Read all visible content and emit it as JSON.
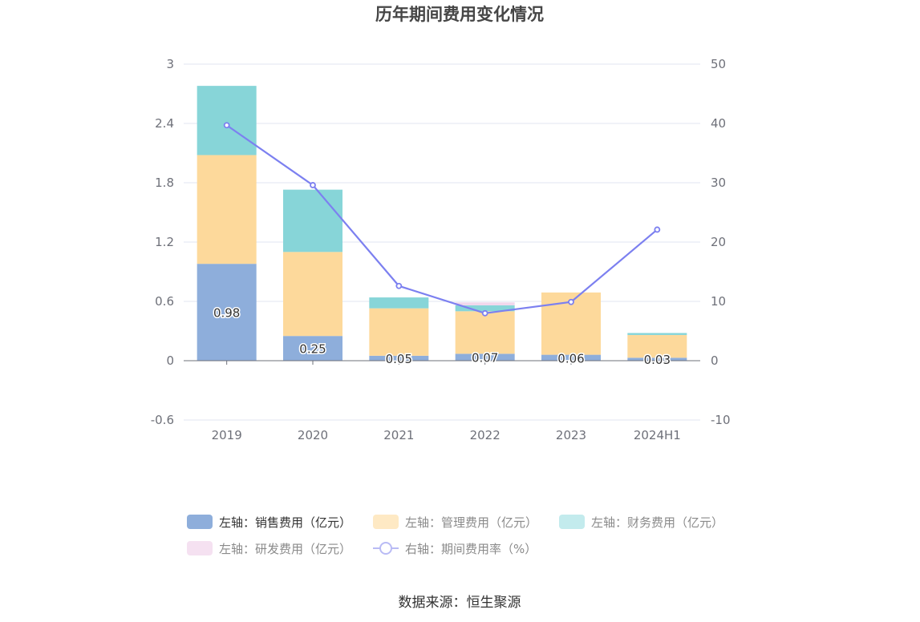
{
  "chart_data": {
    "type": "bar",
    "title": "历年期间费用变化情况",
    "categories": [
      "2019",
      "2020",
      "2021",
      "2022",
      "2023",
      "2024H1"
    ],
    "left_axis": {
      "ticks": [
        "3",
        "2.4",
        "1.8",
        "1.2",
        "0.6",
        "0",
        "-0.6"
      ],
      "ylim": [
        -0.6,
        3
      ]
    },
    "right_axis": {
      "ticks": [
        "50",
        "40",
        "30",
        "20",
        "10",
        "0",
        "-10"
      ],
      "ylim": [
        -10,
        50
      ]
    },
    "series": [
      {
        "name": "左轴：销售费用（亿元）",
        "type": "bar",
        "stack": "cost",
        "color": "#8eaedb",
        "values": [
          0.98,
          0.25,
          0.05,
          0.07,
          0.06,
          0.03
        ],
        "labels": [
          "0.98",
          "0.25",
          "0.05",
          "0.07",
          "0.06",
          "0.03"
        ]
      },
      {
        "name": "左轴：管理费用（亿元）",
        "type": "bar",
        "stack": "cost",
        "color": "#fdd99b",
        "values": [
          1.1,
          0.85,
          0.48,
          0.43,
          0.63,
          0.23
        ]
      },
      {
        "name": "左轴：财务费用（亿元）",
        "type": "bar",
        "stack": "cost",
        "color": "#87d5d8",
        "values": [
          0.7,
          0.63,
          0.11,
          0.06,
          0.0,
          0.02
        ]
      },
      {
        "name": "左轴：研发费用（亿元）",
        "type": "bar",
        "stack": "cost",
        "color": "#f1d7ec",
        "values": [
          0.0,
          0.0,
          0.0,
          0.03,
          0.0,
          0.0
        ]
      },
      {
        "name": "右轴：期间费用率（%）",
        "type": "line",
        "axis": "right",
        "color": "#7c80f0",
        "values": [
          39.7,
          29.6,
          12.6,
          8.0,
          9.9,
          22.1
        ]
      }
    ],
    "legend_placement": "bottom",
    "grid": true
  },
  "footer": {
    "source": "数据来源：恒生聚源"
  }
}
